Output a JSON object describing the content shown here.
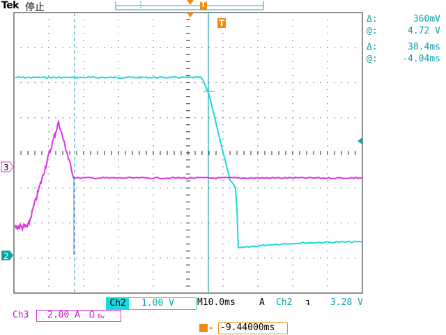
{
  "header": {
    "brand": "Tek",
    "run_state": "停止"
  },
  "cursor_readouts": {
    "voltage_delta_symbol": "Δ:",
    "voltage_delta": "360mV",
    "voltage_at_symbol": "@:",
    "voltage_at": "4.72 V",
    "time_delta_symbol": "Δ:",
    "time_delta": "38.4ms",
    "time_at_symbol": "@:",
    "time_at": "-4.04ms"
  },
  "markers": {
    "trigger_marker": "T",
    "ch3_marker": "3",
    "ch2_marker": "2"
  },
  "bottom_bar": {
    "ch2_label": "Ch2",
    "ch2_scale": "1.00 V",
    "timebase_label": "M",
    "timebase_value": "10.0ms",
    "trigger_mode": "A",
    "trigger_source": "Ch2",
    "trigger_slope": "↴",
    "trigger_level": "3.28 V",
    "ch3_label": "Ch3",
    "ch3_scale": "2.00 A",
    "ch3_suffix": "Ω",
    "ch3_bw": "Bw",
    "trigger_position": "-9.44000ms"
  },
  "colors": {
    "ch2": "#17d9e0",
    "ch3": "#e030e0",
    "cursor_line": "#1aa6b0",
    "trigger": "#f08c12",
    "graticule": "#333333"
  }
}
